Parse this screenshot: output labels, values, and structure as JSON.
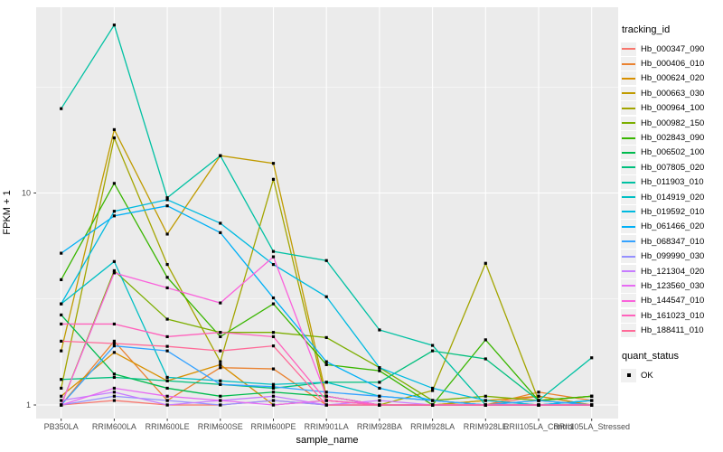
{
  "figure": {
    "y_axis": {
      "title": "FPKM + 1",
      "tick_labels": [
        "1",
        "10"
      ]
    },
    "x_axis": {
      "title": "sample_name"
    },
    "legend": {
      "title": "tracking_id",
      "quant_title": "quant_status",
      "quant_items": [
        {
          "label": "OK"
        }
      ]
    },
    "colors": {
      "panel_bg": "#EBEBEB",
      "grid": "#FFFFFF",
      "axis_text": "#4D4D4D",
      "tick_mark": "#333333",
      "point": "#000000",
      "legend_key_bg": "#F0F0F0"
    }
  },
  "chart_data": {
    "type": "line",
    "title": "",
    "xlabel": "sample_name",
    "ylabel": "FPKM + 1",
    "y_scale": "log10",
    "ylim": [
      0.86,
      74
    ],
    "y_breaks": [
      1,
      10
    ],
    "y_minor_breaks": [
      3.162,
      31.62
    ],
    "grid": true,
    "legend_position": "right",
    "point_shape": "filled-square",
    "point_legend_label": "OK",
    "categories": [
      "PB350LA",
      "RRIM600LA",
      "RRIM600LE",
      "RRIM600SE",
      "RRIM600PE",
      "RRIM901LA",
      "RRIM928BA",
      "RRIM928LA",
      "RRIM928LE",
      "RRII105LA_Control",
      "RRII105LA_Stressed"
    ],
    "series": [
      {
        "name": "Hb_000347_090",
        "color": "#F8766D",
        "values": [
          1.0,
          1.05,
          1.0,
          1.0,
          1.05,
          1.0,
          1.0,
          1.0,
          1.0,
          1.1,
          1.0
        ]
      },
      {
        "name": "Hb_000406_010",
        "color": "#EA8331",
        "values": [
          1.0,
          2.0,
          1.05,
          1.5,
          1.48,
          1.0,
          1.0,
          1.0,
          1.0,
          1.15,
          1.05
        ]
      },
      {
        "name": "Hb_000624_020",
        "color": "#D89000",
        "values": [
          1.1,
          1.77,
          1.3,
          1.55,
          1.0,
          1.05,
          1.0,
          1.0,
          1.05,
          1.1,
          1.0
        ]
      },
      {
        "name": "Hb_000663_030",
        "color": "#C09B00",
        "values": [
          1.8,
          19.9,
          6.4,
          15.0,
          13.8,
          1.1,
          1.0,
          1.0,
          1.05,
          1.0,
          1.0
        ]
      },
      {
        "name": "Hb_000964_100",
        "color": "#A3A500",
        "values": [
          1.2,
          18.2,
          4.6,
          1.6,
          11.6,
          1.05,
          1.0,
          1.17,
          4.66,
          1.05,
          1.1
        ]
      },
      {
        "name": "Hb_000982_150",
        "color": "#7CAE00",
        "values": [
          1.0,
          4.3,
          2.54,
          2.2,
          2.2,
          2.08,
          1.5,
          1.05,
          1.1,
          1.05,
          1.1
        ]
      },
      {
        "name": "Hb_002843_090",
        "color": "#39B600",
        "values": [
          3.9,
          11.1,
          4.0,
          2.1,
          3.0,
          1.55,
          1.45,
          1.0,
          2.03,
          1.05,
          1.1
        ]
      },
      {
        "name": "Hb_006502_100",
        "color": "#00BB4E",
        "values": [
          2.66,
          1.4,
          1.2,
          1.1,
          1.15,
          1.1,
          1.0,
          1.0,
          1.0,
          1.0,
          1.05
        ]
      },
      {
        "name": "Hb_007805_020",
        "color": "#00BF7D",
        "values": [
          1.32,
          1.35,
          1.3,
          1.25,
          1.2,
          1.28,
          1.28,
          1.8,
          1.65,
          1.05,
          1.0
        ]
      },
      {
        "name": "Hb_011903_010",
        "color": "#00C1A3",
        "values": [
          25.0,
          62.0,
          9.5,
          15.0,
          5.3,
          4.8,
          2.26,
          1.91,
          1.0,
          1.05,
          1.67
        ]
      },
      {
        "name": "Hb_014919_020",
        "color": "#00BFC4",
        "values": [
          3.0,
          4.75,
          1.35,
          1.3,
          1.25,
          1.28,
          1.1,
          1.05,
          1.0,
          1.0,
          1.0
        ]
      },
      {
        "name": "Hb_019592_010",
        "color": "#00BAE0",
        "values": [
          3.0,
          8.2,
          9.3,
          7.2,
          4.6,
          3.24,
          1.5,
          1.2,
          1.05,
          1.0,
          1.0
        ]
      },
      {
        "name": "Hb_061466_020",
        "color": "#00B0F6",
        "values": [
          5.2,
          7.8,
          8.7,
          6.5,
          3.2,
          1.6,
          1.2,
          1.05,
          1.0,
          1.0,
          1.05
        ]
      },
      {
        "name": "Hb_068347_010",
        "color": "#35A2FF",
        "values": [
          1.0,
          1.9,
          1.8,
          1.25,
          1.22,
          1.15,
          1.1,
          1.05,
          1.0,
          1.05,
          1.0
        ]
      },
      {
        "name": "Hb_099990_030",
        "color": "#9590FF",
        "values": [
          1.0,
          1.1,
          1.05,
          1.0,
          1.05,
          1.0,
          1.0,
          1.0,
          1.0,
          1.0,
          1.0
        ]
      },
      {
        "name": "Hb_121304_020",
        "color": "#C77CFF",
        "values": [
          1.05,
          1.15,
          1.0,
          1.05,
          1.1,
          1.0,
          1.05,
          1.0,
          1.0,
          1.0,
          1.0
        ]
      },
      {
        "name": "Hb_123560_030",
        "color": "#E76BF3",
        "values": [
          1.0,
          1.2,
          1.1,
          1.05,
          1.0,
          1.05,
          1.0,
          1.0,
          1.0,
          1.0,
          1.0
        ]
      },
      {
        "name": "Hb_144547_010",
        "color": "#FA62DB",
        "values": [
          1.0,
          4.2,
          3.57,
          3.03,
          5.0,
          1.1,
          1.0,
          1.0,
          1.0,
          1.0,
          1.0
        ]
      },
      {
        "name": "Hb_161023_010",
        "color": "#FF62BC",
        "values": [
          2.41,
          2.41,
          2.1,
          2.2,
          2.1,
          1.05,
          1.0,
          1.0,
          1.0,
          1.0,
          1.0
        ]
      },
      {
        "name": "Hb_188411_010",
        "color": "#FF6A98",
        "values": [
          2.0,
          1.95,
          1.89,
          1.8,
          1.9,
          1.0,
          1.0,
          1.0,
          1.0,
          1.0,
          1.0
        ]
      }
    ]
  }
}
